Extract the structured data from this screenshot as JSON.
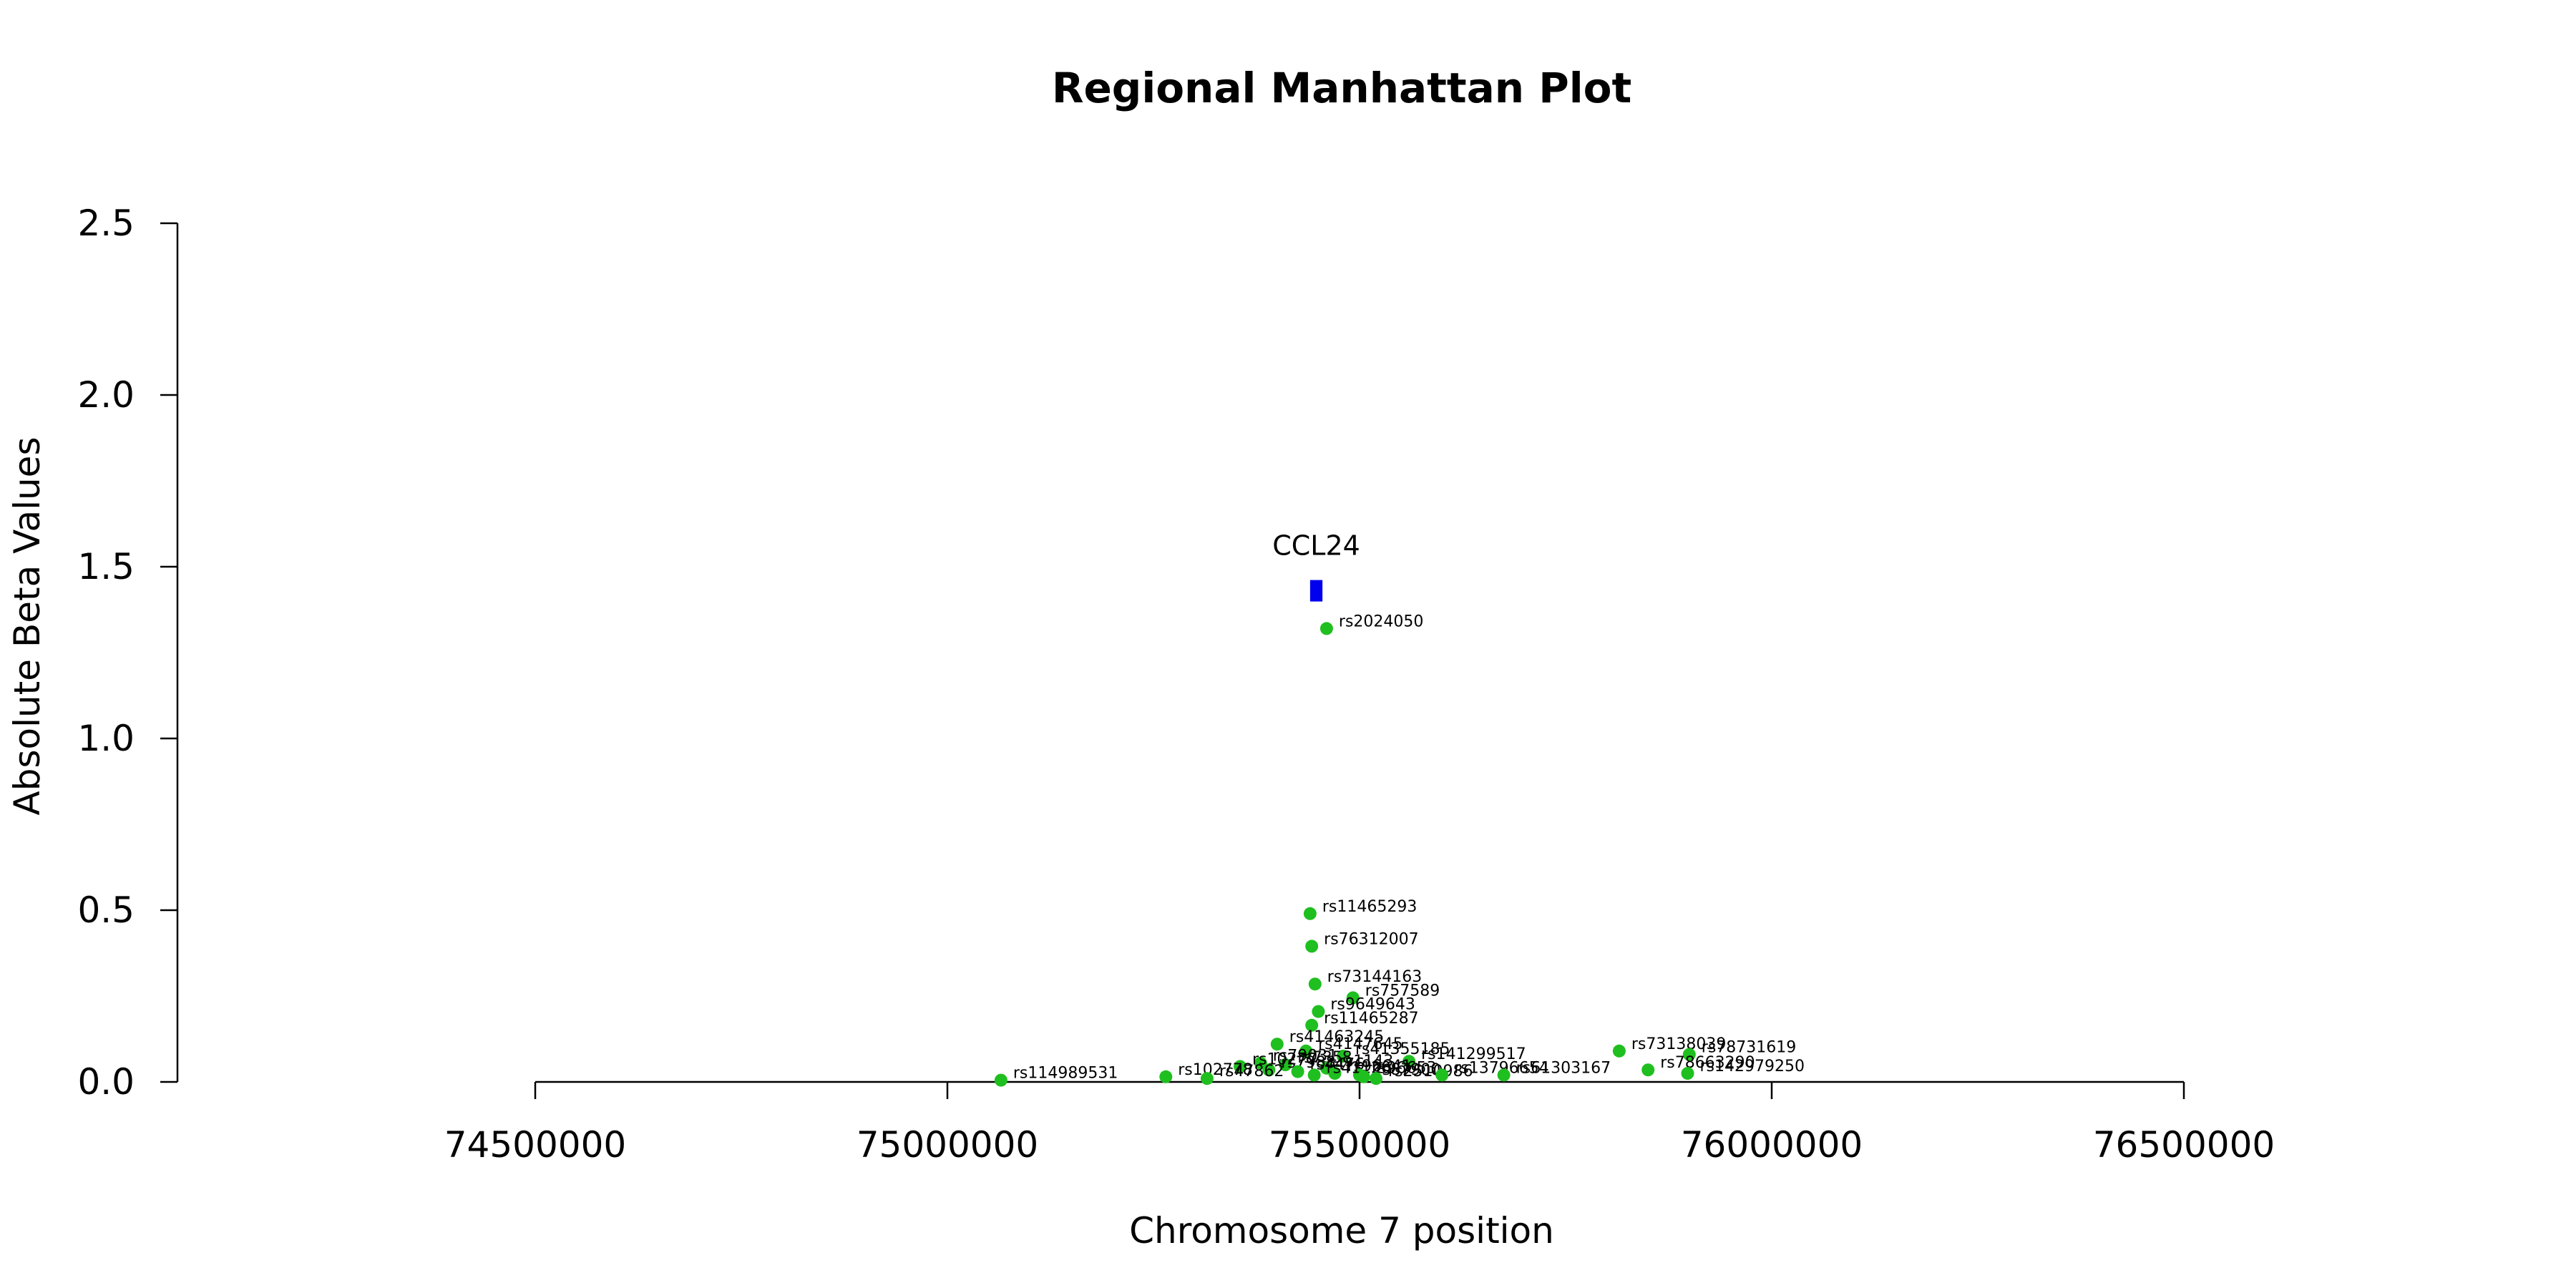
{
  "chart_data": {
    "type": "scatter",
    "title": "Regional Manhattan Plot",
    "xlabel": "Chromosome 7 position",
    "ylabel": "Absolute Beta Values",
    "xlim": [
      74500000,
      76500000
    ],
    "ylim": [
      0,
      2.5
    ],
    "x_ticks": [
      74500000,
      75000000,
      75500000,
      76000000,
      76500000
    ],
    "x_tick_labels": [
      "74500000",
      "75000000",
      "75500000",
      "76000000",
      "76500000"
    ],
    "y_ticks": [
      0,
      0.5,
      1,
      1.5,
      2,
      2.5
    ],
    "y_tick_labels": [
      "0.0",
      "0.5",
      "1.0",
      "1.5",
      "2.0",
      "2.5"
    ],
    "grid": false,
    "point_color": "#1fbf1f",
    "gene_color": "#0000ee",
    "genes": [
      {
        "name": "CCL24",
        "start": 75440000,
        "end": 75455000,
        "y": 1.43
      }
    ],
    "points": [
      {
        "label": "rs2024050",
        "x": 75460000,
        "y": 1.32
      },
      {
        "label": "rs11465293",
        "x": 75440000,
        "y": 0.49
      },
      {
        "label": "rs76312007",
        "x": 75442000,
        "y": 0.395
      },
      {
        "label": "rs73144163",
        "x": 75446000,
        "y": 0.285
      },
      {
        "label": "rs757589",
        "x": 75492000,
        "y": 0.245
      },
      {
        "label": "rs9649643",
        "x": 75450000,
        "y": 0.205
      },
      {
        "label": "rs11465287",
        "x": 75442000,
        "y": 0.165
      },
      {
        "label": "rs41463245",
        "x": 75400000,
        "y": 0.11
      },
      {
        "label": "rs4147645",
        "x": 75435000,
        "y": 0.09
      },
      {
        "label": "rs41355185",
        "x": 75480000,
        "y": 0.075
      },
      {
        "label": "rs141299517",
        "x": 75560000,
        "y": 0.06
      },
      {
        "label": "rs79031",
        "x": 75380000,
        "y": 0.055
      },
      {
        "label": "rs7358",
        "x": 75410000,
        "y": 0.05
      },
      {
        "label": "rs1143",
        "x": 75460000,
        "y": 0.04
      },
      {
        "label": "rs10277",
        "x": 75355000,
        "y": 0.045
      },
      {
        "label": "rs7988",
        "x": 75390000,
        "y": 0.035
      },
      {
        "label": "rs4476",
        "x": 75425000,
        "y": 0.03
      },
      {
        "label": "rs96641",
        "x": 75470000,
        "y": 0.025
      },
      {
        "label": "rs96653",
        "x": 75500000,
        "y": 0.02
      },
      {
        "label": "rs41120",
        "x": 75445000,
        "y": 0.02
      },
      {
        "label": "rs87900",
        "x": 75505000,
        "y": 0.015
      },
      {
        "label": "rs2510986",
        "x": 75520000,
        "y": 0.01
      },
      {
        "label": "rs13796654",
        "x": 75600000,
        "y": 0.02
      },
      {
        "label": "rs61303167",
        "x": 75675000,
        "y": 0.02
      },
      {
        "label": "rs102778",
        "x": 75265000,
        "y": 0.015
      },
      {
        "label": "rs47862",
        "x": 75315000,
        "y": 0.01
      },
      {
        "label": "rs114989531",
        "x": 75065000,
        "y": 0.005
      },
      {
        "label": "rs73138039",
        "x": 75815000,
        "y": 0.09
      },
      {
        "label": "rs78731619",
        "x": 75900000,
        "y": 0.08
      },
      {
        "label": "rs78663290",
        "x": 75850000,
        "y": 0.035
      },
      {
        "label": "rs142979250",
        "x": 75898000,
        "y": 0.025
      }
    ]
  }
}
